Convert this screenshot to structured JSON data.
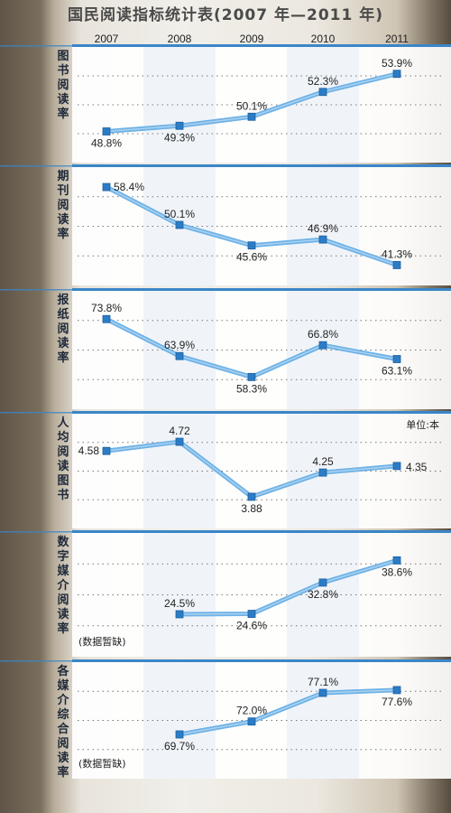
{
  "title": "国民阅读指标统计表(2007 年—2011 年)",
  "unit_note": "单位:本",
  "missing_note": "(数据暂缺)",
  "colors": {
    "band": "#3a86c8",
    "line": "#6fb2e6",
    "marker": "#2b7cc7",
    "panel": "#ffffff"
  },
  "chart_data": [
    {
      "type": "line",
      "xlabel_vertical": "图书阅读率",
      "x": [
        "2007",
        "2008",
        "2009",
        "2010",
        "2011"
      ],
      "values": [
        48.8,
        49.3,
        50.1,
        52.3,
        53.9
      ],
      "labels": [
        "48.8%",
        "49.3%",
        "50.1%",
        "52.3%",
        "53.9%"
      ],
      "ylim": [
        47,
        55
      ]
    },
    {
      "type": "line",
      "xlabel_vertical": "期刊阅读率",
      "x": [
        "2007",
        "2008",
        "2009",
        "2010",
        "2011"
      ],
      "values": [
        58.4,
        50.1,
        45.6,
        46.9,
        41.3
      ],
      "labels": [
        "58.4%",
        "50.1%",
        "45.6%",
        "46.9%",
        "41.3%"
      ],
      "ylim": [
        40,
        60
      ]
    },
    {
      "type": "line",
      "xlabel_vertical": "报纸阅读率",
      "x": [
        "2007",
        "2008",
        "2009",
        "2010",
        "2011"
      ],
      "values": [
        73.8,
        63.9,
        58.3,
        66.8,
        63.1
      ],
      "labels": [
        "73.8%",
        "63.9%",
        "58.3%",
        "66.8%",
        "63.1%"
      ],
      "ylim": [
        55,
        77
      ]
    },
    {
      "type": "line",
      "xlabel_vertical": "人均阅读图书",
      "x": [
        "2007",
        "2008",
        "2009",
        "2010",
        "2011"
      ],
      "values": [
        4.58,
        4.72,
        3.88,
        4.25,
        4.35
      ],
      "labels": [
        "4.58",
        "4.72",
        "3.88",
        "4.25",
        "4.35"
      ],
      "ylim": [
        3.7,
        4.9
      ]
    },
    {
      "type": "line",
      "xlabel_vertical": "数字媒介阅读率",
      "x": [
        "2007",
        "2008",
        "2009",
        "2010",
        "2011"
      ],
      "values": [
        null,
        24.5,
        24.6,
        32.8,
        38.6
      ],
      "labels": [
        "",
        "24.5%",
        "24.6%",
        "32.8%",
        "38.6%"
      ],
      "ylim": [
        20,
        42
      ]
    },
    {
      "type": "line",
      "xlabel_vertical": "各媒介综合阅读率",
      "x": [
        "2007",
        "2008",
        "2009",
        "2010",
        "2011"
      ],
      "values": [
        null,
        69.7,
        72.0,
        77.1,
        77.6
      ],
      "labels": [
        "",
        "69.7%",
        "72.0%",
        "77.1%",
        "77.6%"
      ],
      "ylim": [
        66,
        80
      ]
    }
  ]
}
